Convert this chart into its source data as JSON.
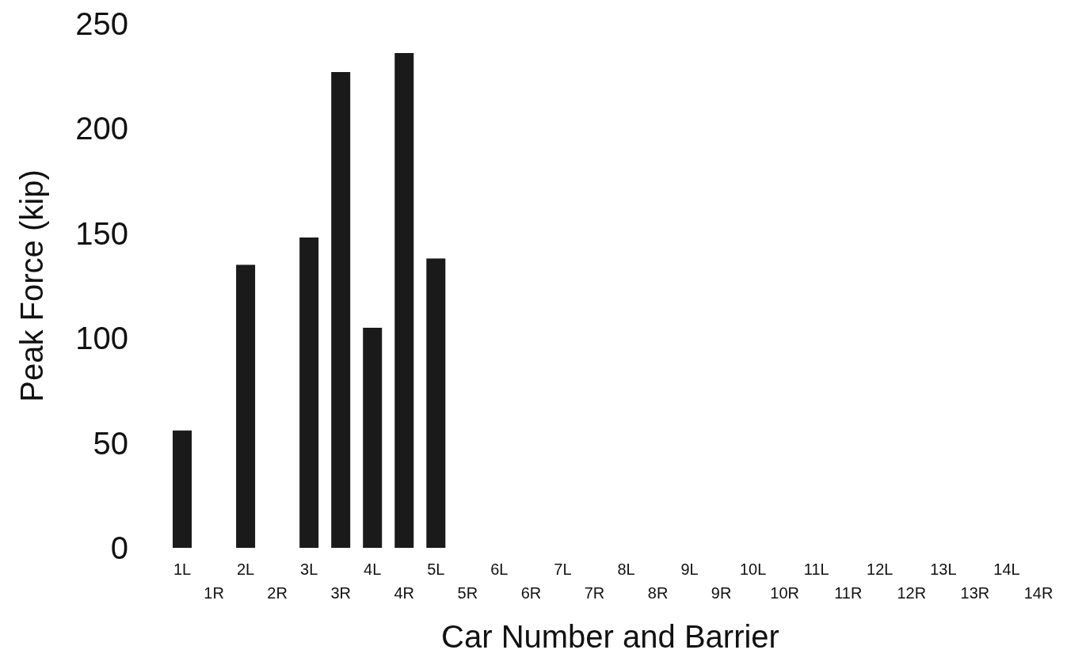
{
  "chart_data": {
    "type": "bar",
    "xlabel": "Car Number and Barrier",
    "ylabel": "Peak Force (kip)",
    "categories": [
      "1L",
      "1R",
      "2L",
      "2R",
      "3L",
      "3R",
      "4L",
      "4R",
      "5L",
      "5R",
      "6L",
      "6R",
      "7L",
      "7R",
      "8L",
      "8R",
      "9L",
      "9R",
      "10L",
      "10R",
      "11L",
      "11R",
      "12L",
      "12R",
      "13L",
      "13R",
      "14L",
      "14R"
    ],
    "values": [
      56,
      0,
      135,
      0,
      148,
      227,
      105,
      236,
      138,
      0,
      0,
      0,
      0,
      0,
      0,
      0,
      0,
      0,
      0,
      0,
      0,
      0,
      0,
      0,
      0,
      0,
      0,
      0
    ],
    "color": "#1a1a1a",
    "ylim": [
      0,
      250
    ],
    "yticks": [
      0,
      50,
      100,
      150,
      200,
      250
    ],
    "grid": false
  }
}
